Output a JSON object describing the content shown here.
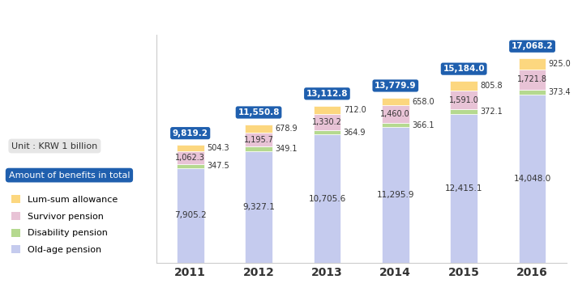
{
  "chart_data": {
    "type": "bar",
    "stacked": true,
    "data_labels": true,
    "tick_labels": "x",
    "legend": "upper left",
    "annotations": [
      "Unit : KRW 1 billion"
    ],
    "categories": [
      "2011",
      "2012",
      "2013",
      "2014",
      "2015",
      "2016"
    ],
    "ylim": [
      0,
      19000
    ],
    "series": [
      {
        "name": "Old-age pension",
        "color": "#c5cbee",
        "values": [
          7905.2,
          9327.1,
          10705.6,
          11295.9,
          12415.1,
          14048.0
        ],
        "value_labels": [
          "7,905.2",
          "9,327.1",
          "10,705.6",
          "11,295.9",
          "12,415.1",
          "14,048.0"
        ]
      },
      {
        "name": "Disability pension",
        "color": "#b5d98f",
        "values": [
          347.5,
          349.1,
          364.9,
          366.1,
          372.1,
          373.4
        ],
        "value_labels": [
          "347.5",
          "349.1",
          "364.9",
          "366.1",
          "372.1",
          "373.4"
        ]
      },
      {
        "name": "Survivor pension",
        "color": "#e8c3d6",
        "values": [
          1062.3,
          1195.7,
          1330.2,
          1460.0,
          1591.0,
          1721.8
        ],
        "value_labels": [
          "1,062.3",
          "1,195.7",
          "1,330.2",
          "1,460.0",
          "1,591.0",
          "1,721.8"
        ]
      },
      {
        "name": "Lum-sum allowance",
        "color": "#fcd77f",
        "values": [
          504.3,
          678.9,
          712.0,
          658.0,
          805.8,
          925.0
        ],
        "value_labels": [
          "504.3",
          "678.9",
          "712.0",
          "658.0",
          "805.8",
          "925.0"
        ]
      }
    ],
    "totals": {
      "name": "Amount of benefits in total",
      "color": "#1f5fae",
      "values": [
        9819.2,
        11550.8,
        13112.8,
        13779.9,
        15184.0,
        17068.2
      ],
      "value_labels": [
        "9,819.2",
        "11,550.8",
        "13,112.8",
        "13,779.9",
        "15,184.0",
        "17,068.2"
      ]
    }
  }
}
